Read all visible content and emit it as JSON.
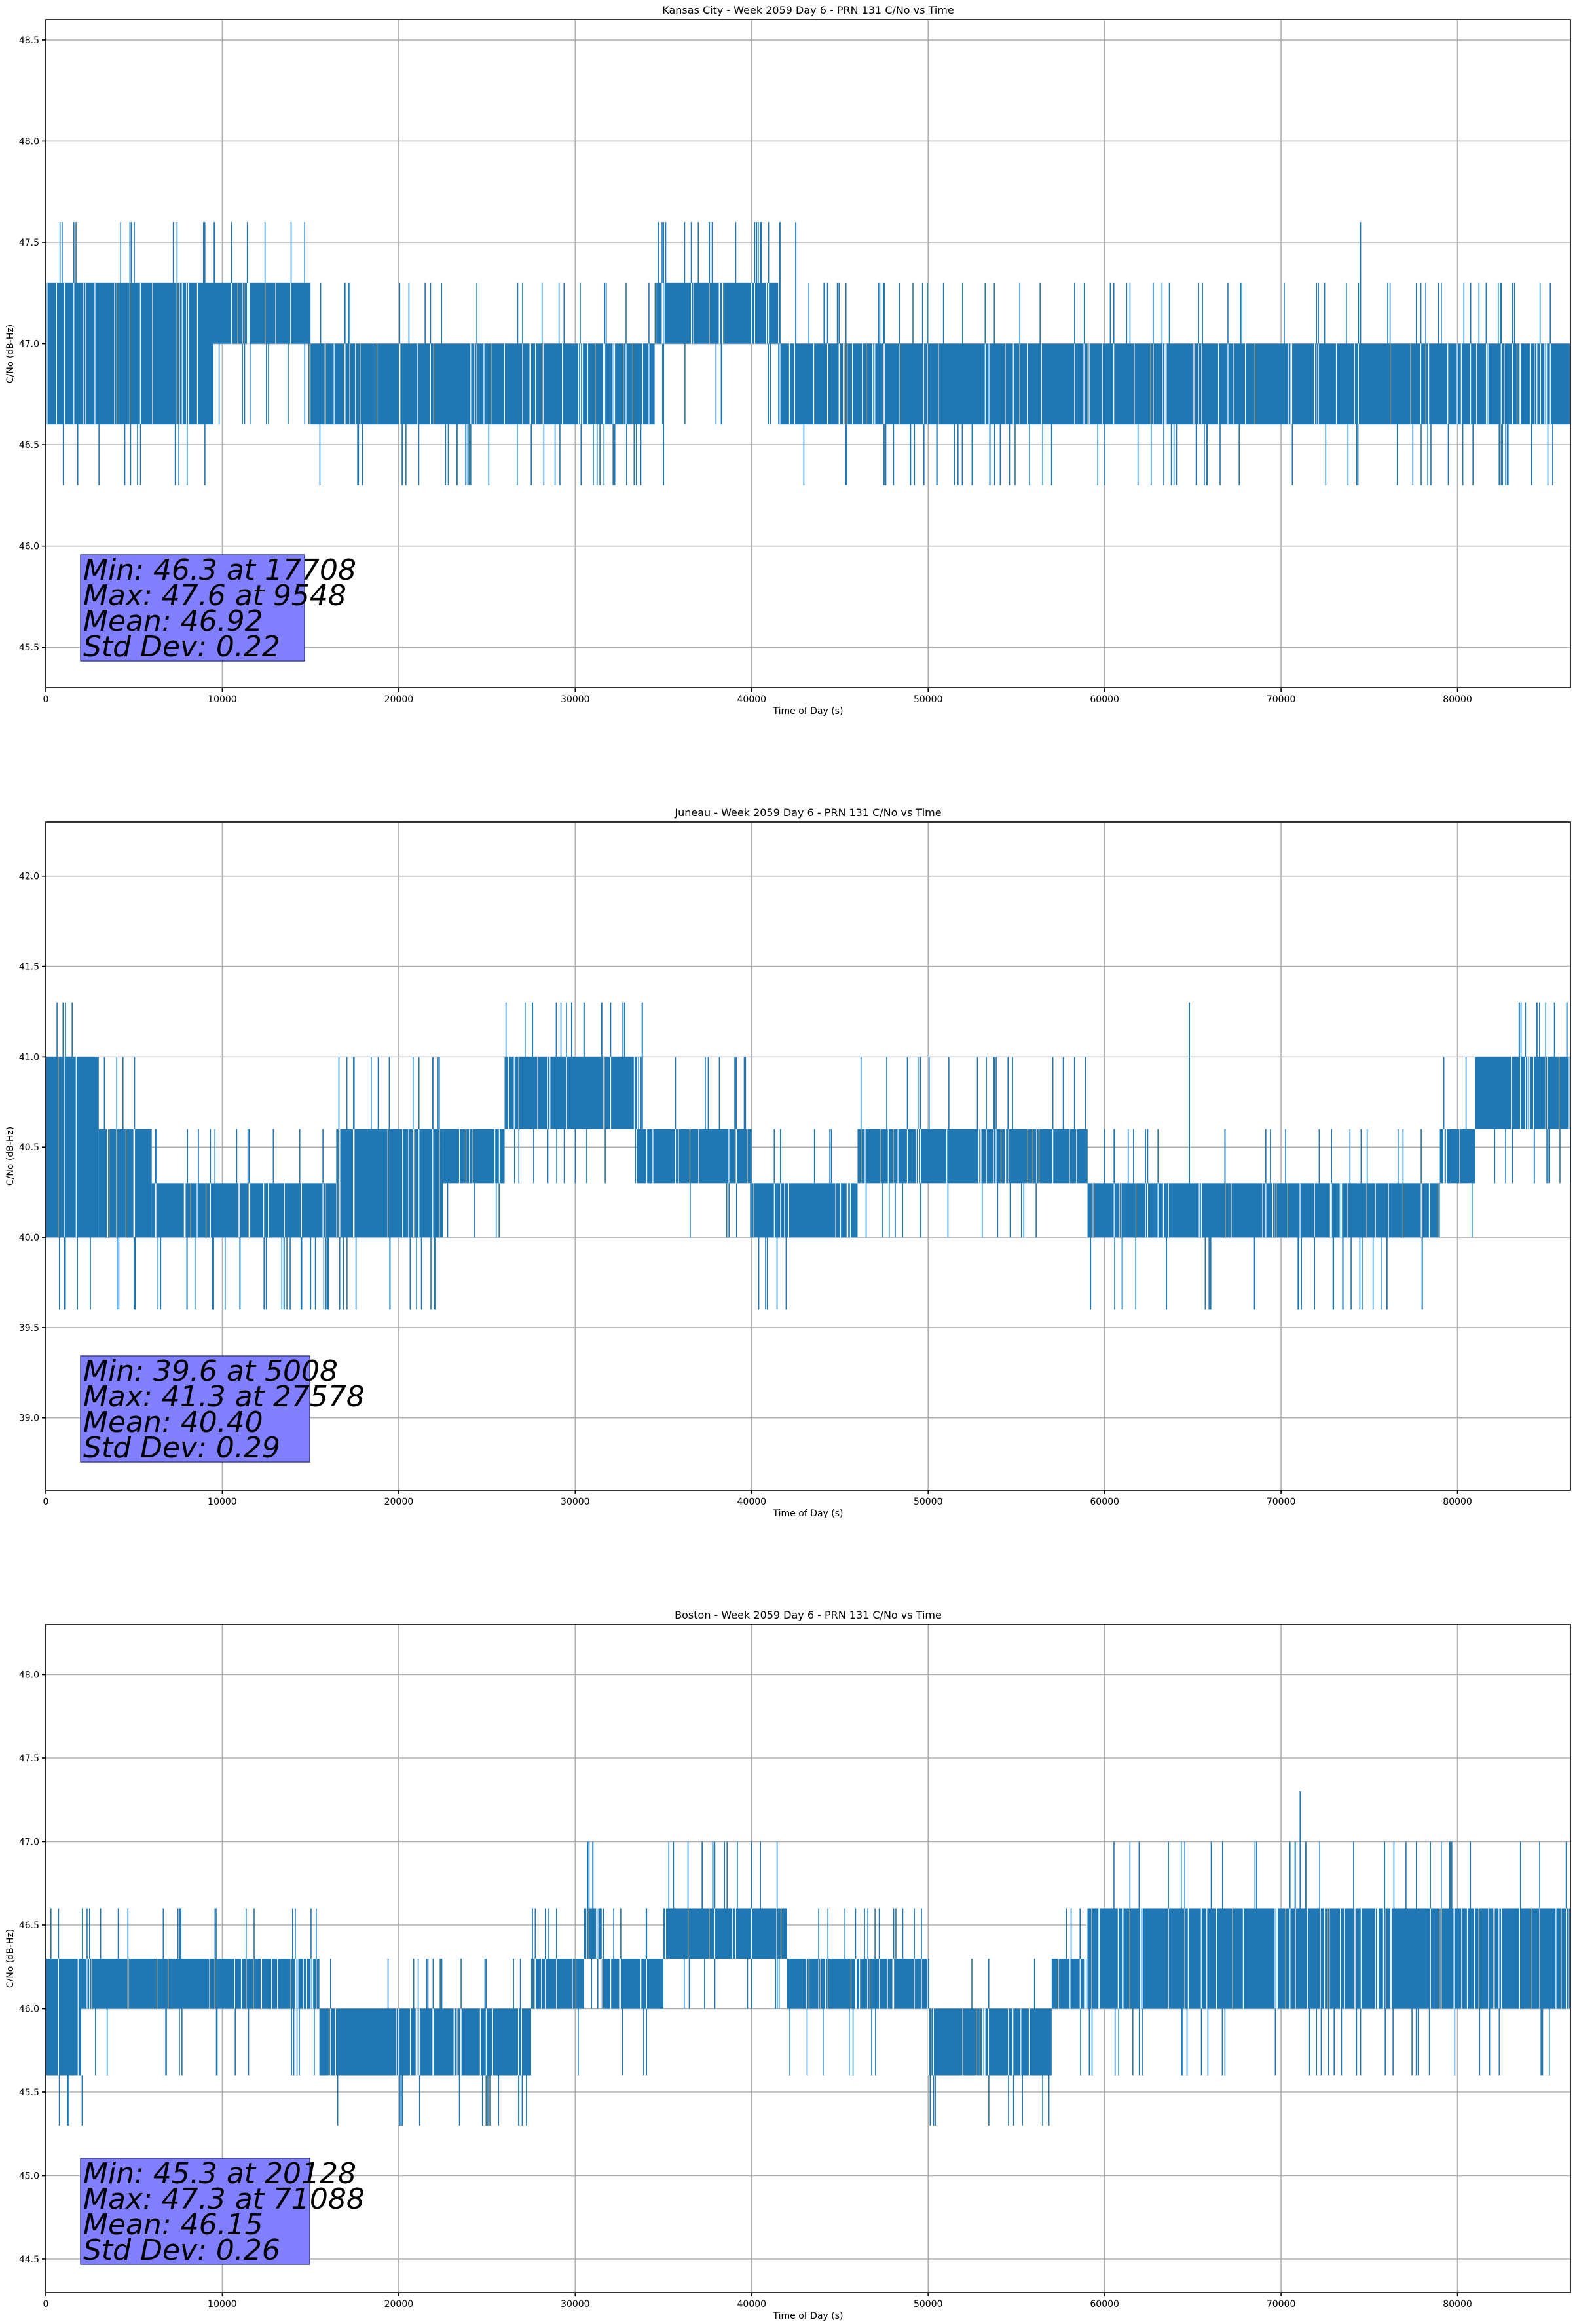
{
  "chart_data": [
    {
      "type": "line",
      "title": "Kansas City - Week 2059 Day 6 - PRN 131 C/No vs Time",
      "xlabel": "Time of Day (s)",
      "ylabel": "C/No (dB-Hz)",
      "xlim": [
        0,
        86400
      ],
      "ylim": [
        45.3,
        48.6
      ],
      "xticks": [
        0,
        10000,
        20000,
        30000,
        40000,
        50000,
        60000,
        70000,
        80000
      ],
      "yticks": [
        45.5,
        46.0,
        46.5,
        47.0,
        47.5,
        48.0,
        48.5
      ],
      "grid": true,
      "color": "#1f77b4",
      "series": [
        {
          "levels": [
            46.3,
            46.6,
            47.0,
            47.3,
            47.6
          ],
          "segments": [
            {
              "x": [
                0,
                9500
              ],
              "range": [
                46.6,
                47.3
              ]
            },
            {
              "x": [
                9500,
                15000
              ],
              "range": [
                47.0,
                47.3
              ]
            },
            {
              "x": [
                15000,
                34500
              ],
              "range": [
                46.6,
                47.0
              ]
            },
            {
              "x": [
                34500,
                41500
              ],
              "range": [
                47.0,
                47.3
              ]
            },
            {
              "x": [
                41500,
                86400
              ],
              "range": [
                46.6,
                47.0
              ]
            }
          ],
          "spikes": [
            {
              "x": 9548,
              "y": 47.6
            },
            {
              "x": 34700,
              "y": 47.6
            },
            {
              "x": 35000,
              "y": 47.6
            },
            {
              "x": 37600,
              "y": 47.6
            },
            {
              "x": 40500,
              "y": 47.6
            },
            {
              "x": 41600,
              "y": 47.6
            },
            {
              "x": 42500,
              "y": 47.6
            },
            {
              "x": 74500,
              "y": 47.6
            },
            {
              "x": 17708,
              "y": 46.3
            },
            {
              "x": 20200,
              "y": 46.3
            },
            {
              "x": 23300,
              "y": 46.3
            },
            {
              "x": 23800,
              "y": 46.3
            },
            {
              "x": 35000,
              "y": 46.3
            },
            {
              "x": 47500,
              "y": 46.3
            },
            {
              "x": 49000,
              "y": 46.3
            },
            {
              "x": 50500,
              "y": 46.3
            },
            {
              "x": 51500,
              "y": 46.3
            },
            {
              "x": 52500,
              "y": 46.3
            },
            {
              "x": 53500,
              "y": 46.3
            },
            {
              "x": 57000,
              "y": 46.3
            },
            {
              "x": 65200,
              "y": 46.3
            },
            {
              "x": 65800,
              "y": 46.3
            },
            {
              "x": 84200,
              "y": 46.3
            }
          ]
        }
      ],
      "stats": [
        "Min: 46.3 at 17708",
        "Max: 47.6 at 9548",
        "Mean: 46.92",
        "Std Dev: 0.22"
      ]
    },
    {
      "type": "line",
      "title": "Juneau - Week 2059 Day 6 - PRN 131 C/No vs Time",
      "xlabel": "Time of Day (s)",
      "ylabel": "C/No (dB-Hz)",
      "xlim": [
        0,
        86400
      ],
      "ylim": [
        38.6,
        42.3
      ],
      "xticks": [
        0,
        10000,
        20000,
        30000,
        40000,
        50000,
        60000,
        70000,
        80000
      ],
      "yticks": [
        39.0,
        39.5,
        40.0,
        40.5,
        41.0,
        41.5,
        42.0
      ],
      "grid": true,
      "color": "#1f77b4",
      "series": [
        {
          "levels": [
            39.6,
            40.0,
            40.3,
            40.6,
            41.0,
            41.3
          ],
          "segments": [
            {
              "x": [
                0,
                3000
              ],
              "range": [
                40.0,
                41.0
              ]
            },
            {
              "x": [
                3000,
                6000
              ],
              "range": [
                40.0,
                40.6
              ]
            },
            {
              "x": [
                6000,
                16500
              ],
              "range": [
                40.0,
                40.3
              ]
            },
            {
              "x": [
                16500,
                22500
              ],
              "range": [
                40.0,
                40.6
              ]
            },
            {
              "x": [
                22500,
                26000
              ],
              "range": [
                40.3,
                40.6
              ]
            },
            {
              "x": [
                26000,
                33500
              ],
              "range": [
                40.6,
                41.0
              ]
            },
            {
              "x": [
                33500,
                40000
              ],
              "range": [
                40.3,
                40.6
              ]
            },
            {
              "x": [
                40000,
                46000
              ],
              "range": [
                40.0,
                40.3
              ]
            },
            {
              "x": [
                46000,
                59000
              ],
              "range": [
                40.3,
                40.6
              ]
            },
            {
              "x": [
                59000,
                79000
              ],
              "range": [
                40.0,
                40.3
              ]
            },
            {
              "x": [
                79000,
                81000
              ],
              "range": [
                40.3,
                40.6
              ]
            },
            {
              "x": [
                81000,
                86400
              ],
              "range": [
                40.6,
                41.0
              ]
            }
          ],
          "spikes": [
            {
              "x": 5008,
              "y": 39.6
            },
            {
              "x": 6500,
              "y": 39.6
            },
            {
              "x": 8000,
              "y": 39.6
            },
            {
              "x": 9500,
              "y": 39.6
            },
            {
              "x": 11000,
              "y": 39.6
            },
            {
              "x": 12500,
              "y": 39.6
            },
            {
              "x": 13500,
              "y": 39.6
            },
            {
              "x": 15000,
              "y": 39.6
            },
            {
              "x": 16000,
              "y": 39.6
            },
            {
              "x": 19500,
              "y": 39.6
            },
            {
              "x": 59200,
              "y": 39.6
            },
            {
              "x": 61000,
              "y": 39.6
            },
            {
              "x": 63500,
              "y": 39.6
            },
            {
              "x": 66000,
              "y": 39.6
            },
            {
              "x": 68500,
              "y": 39.6
            },
            {
              "x": 71000,
              "y": 39.6
            },
            {
              "x": 73500,
              "y": 39.6
            },
            {
              "x": 76000,
              "y": 39.6
            },
            {
              "x": 78000,
              "y": 39.6
            },
            {
              "x": 27578,
              "y": 41.3
            },
            {
              "x": 29800,
              "y": 41.3
            },
            {
              "x": 30500,
              "y": 41.3
            },
            {
              "x": 31500,
              "y": 41.3
            },
            {
              "x": 32800,
              "y": 41.3
            },
            {
              "x": 33800,
              "y": 41.3
            },
            {
              "x": 64800,
              "y": 41.3
            },
            {
              "x": 83500,
              "y": 41.3
            },
            {
              "x": 84500,
              "y": 41.3
            },
            {
              "x": 85500,
              "y": 41.3
            },
            {
              "x": 86200,
              "y": 41.3
            }
          ]
        }
      ],
      "stats": [
        "Min: 39.6 at 5008",
        "Max: 41.3 at 27578",
        "Mean: 40.40",
        "Std Dev: 0.29"
      ]
    },
    {
      "type": "line",
      "title": "Boston - Week 2059 Day 6 - PRN 131 C/No vs Time",
      "xlabel": "Time of Day (s)",
      "ylabel": "C/No (dB-Hz)",
      "xlim": [
        0,
        86400
      ],
      "ylim": [
        44.3,
        48.3
      ],
      "xticks": [
        0,
        10000,
        20000,
        30000,
        40000,
        50000,
        60000,
        70000,
        80000
      ],
      "yticks": [
        44.5,
        45.0,
        45.5,
        46.0,
        46.5,
        47.0,
        47.5,
        48.0
      ],
      "grid": true,
      "color": "#1f77b4",
      "series": [
        {
          "levels": [
            45.3,
            45.6,
            46.0,
            46.3,
            46.6,
            47.0,
            47.3
          ],
          "segments": [
            {
              "x": [
                0,
                2000
              ],
              "range": [
                45.6,
                46.3
              ]
            },
            {
              "x": [
                2000,
                15500
              ],
              "range": [
                46.0,
                46.3
              ]
            },
            {
              "x": [
                15500,
                27500
              ],
              "range": [
                45.6,
                46.0
              ]
            },
            {
              "x": [
                27500,
                30500
              ],
              "range": [
                46.0,
                46.3
              ]
            },
            {
              "x": [
                30500,
                31500
              ],
              "range": [
                46.3,
                46.6
              ]
            },
            {
              "x": [
                31500,
                35000
              ],
              "range": [
                46.0,
                46.3
              ]
            },
            {
              "x": [
                35000,
                42000
              ],
              "range": [
                46.3,
                46.6
              ]
            },
            {
              "x": [
                42000,
                50000
              ],
              "range": [
                46.0,
                46.3
              ]
            },
            {
              "x": [
                50000,
                57000
              ],
              "range": [
                45.6,
                46.0
              ]
            },
            {
              "x": [
                57000,
                59000
              ],
              "range": [
                46.0,
                46.3
              ]
            },
            {
              "x": [
                59000,
                86400
              ],
              "range": [
                46.0,
                46.6
              ]
            }
          ],
          "spikes": [
            {
              "x": 20128,
              "y": 45.3
            },
            {
              "x": 26800,
              "y": 45.3
            },
            {
              "x": 30700,
              "y": 47.0
            },
            {
              "x": 31000,
              "y": 47.0
            },
            {
              "x": 37200,
              "y": 47.0
            },
            {
              "x": 37800,
              "y": 47.0
            },
            {
              "x": 70500,
              "y": 47.0
            },
            {
              "x": 70800,
              "y": 47.0
            },
            {
              "x": 71088,
              "y": 47.3
            },
            {
              "x": 71400,
              "y": 47.0
            }
          ]
        }
      ],
      "stats": [
        "Min: 45.3 at 20128",
        "Max: 47.3 at 71088",
        "Mean: 46.15",
        "Std Dev: 0.26"
      ]
    }
  ]
}
